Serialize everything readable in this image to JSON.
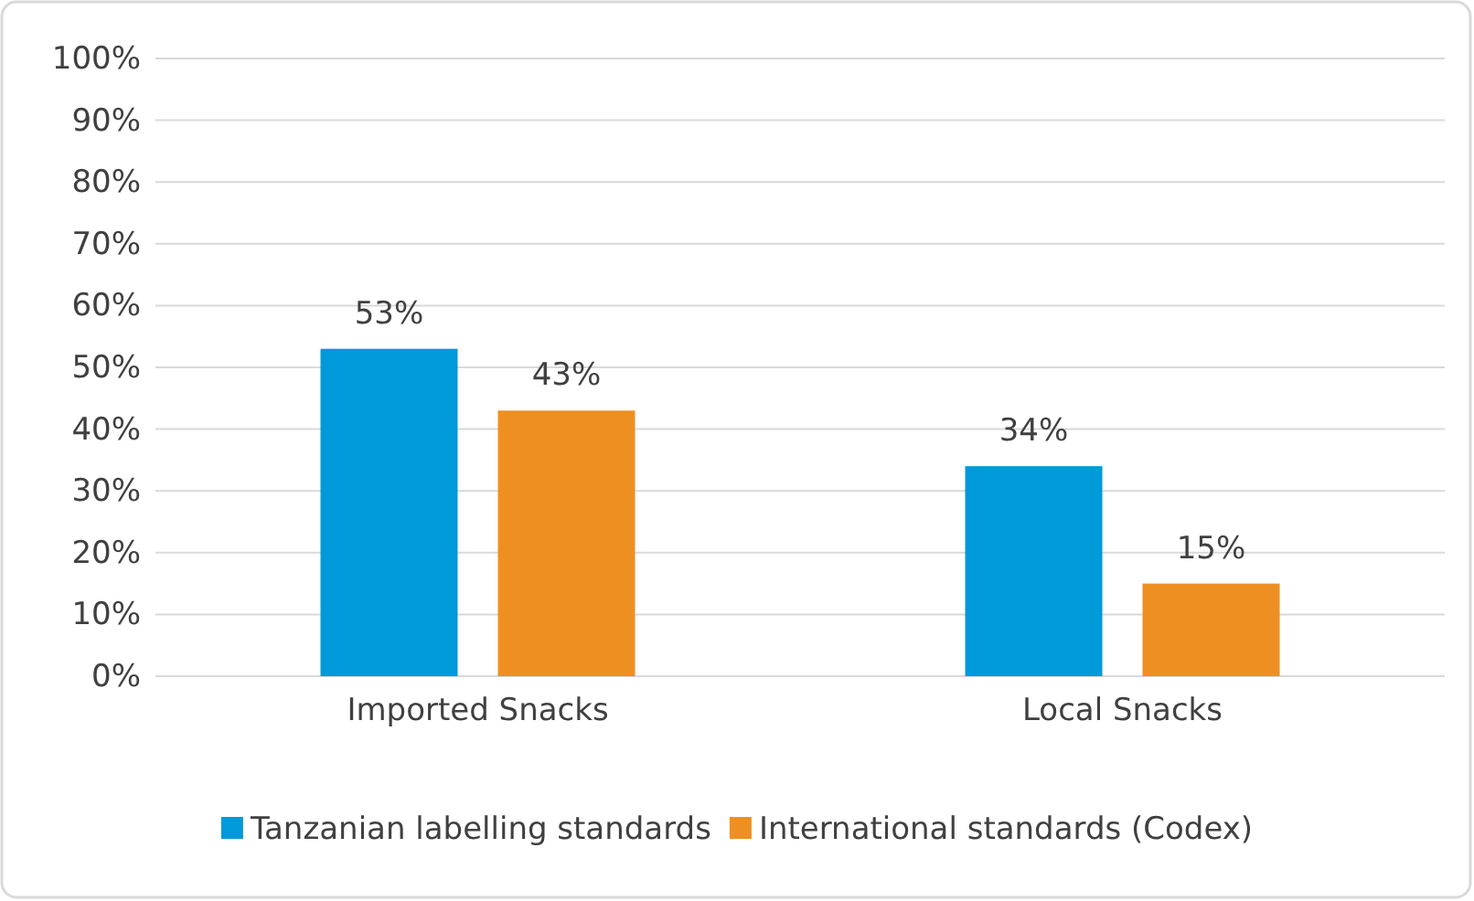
{
  "chart_data": {
    "type": "bar",
    "categories": [
      "Imported Snacks",
      "Local Snacks"
    ],
    "series": [
      {
        "name": "Tanzanian labelling standards",
        "color": "#0099d9",
        "values": [
          53,
          34
        ],
        "value_labels": [
          "53%",
          "34%"
        ]
      },
      {
        "name": "International standards (Codex)",
        "color": "#ee8f22",
        "values": [
          43,
          15
        ],
        "value_labels": [
          "43%",
          "15%"
        ]
      }
    ],
    "ylim": [
      0,
      100
    ],
    "yticks": [
      {
        "value": 0,
        "label": "0%"
      },
      {
        "value": 10,
        "label": "10%"
      },
      {
        "value": 20,
        "label": "20%"
      },
      {
        "value": 30,
        "label": "30%"
      },
      {
        "value": 40,
        "label": "40%"
      },
      {
        "value": 50,
        "label": "50%"
      },
      {
        "value": 60,
        "label": "60%"
      },
      {
        "value": 70,
        "label": "70%"
      },
      {
        "value": 80,
        "label": "80%"
      },
      {
        "value": 90,
        "label": "90%"
      },
      {
        "value": 100,
        "label": "100%"
      }
    ],
    "grid": "y",
    "legend": "bottom"
  }
}
